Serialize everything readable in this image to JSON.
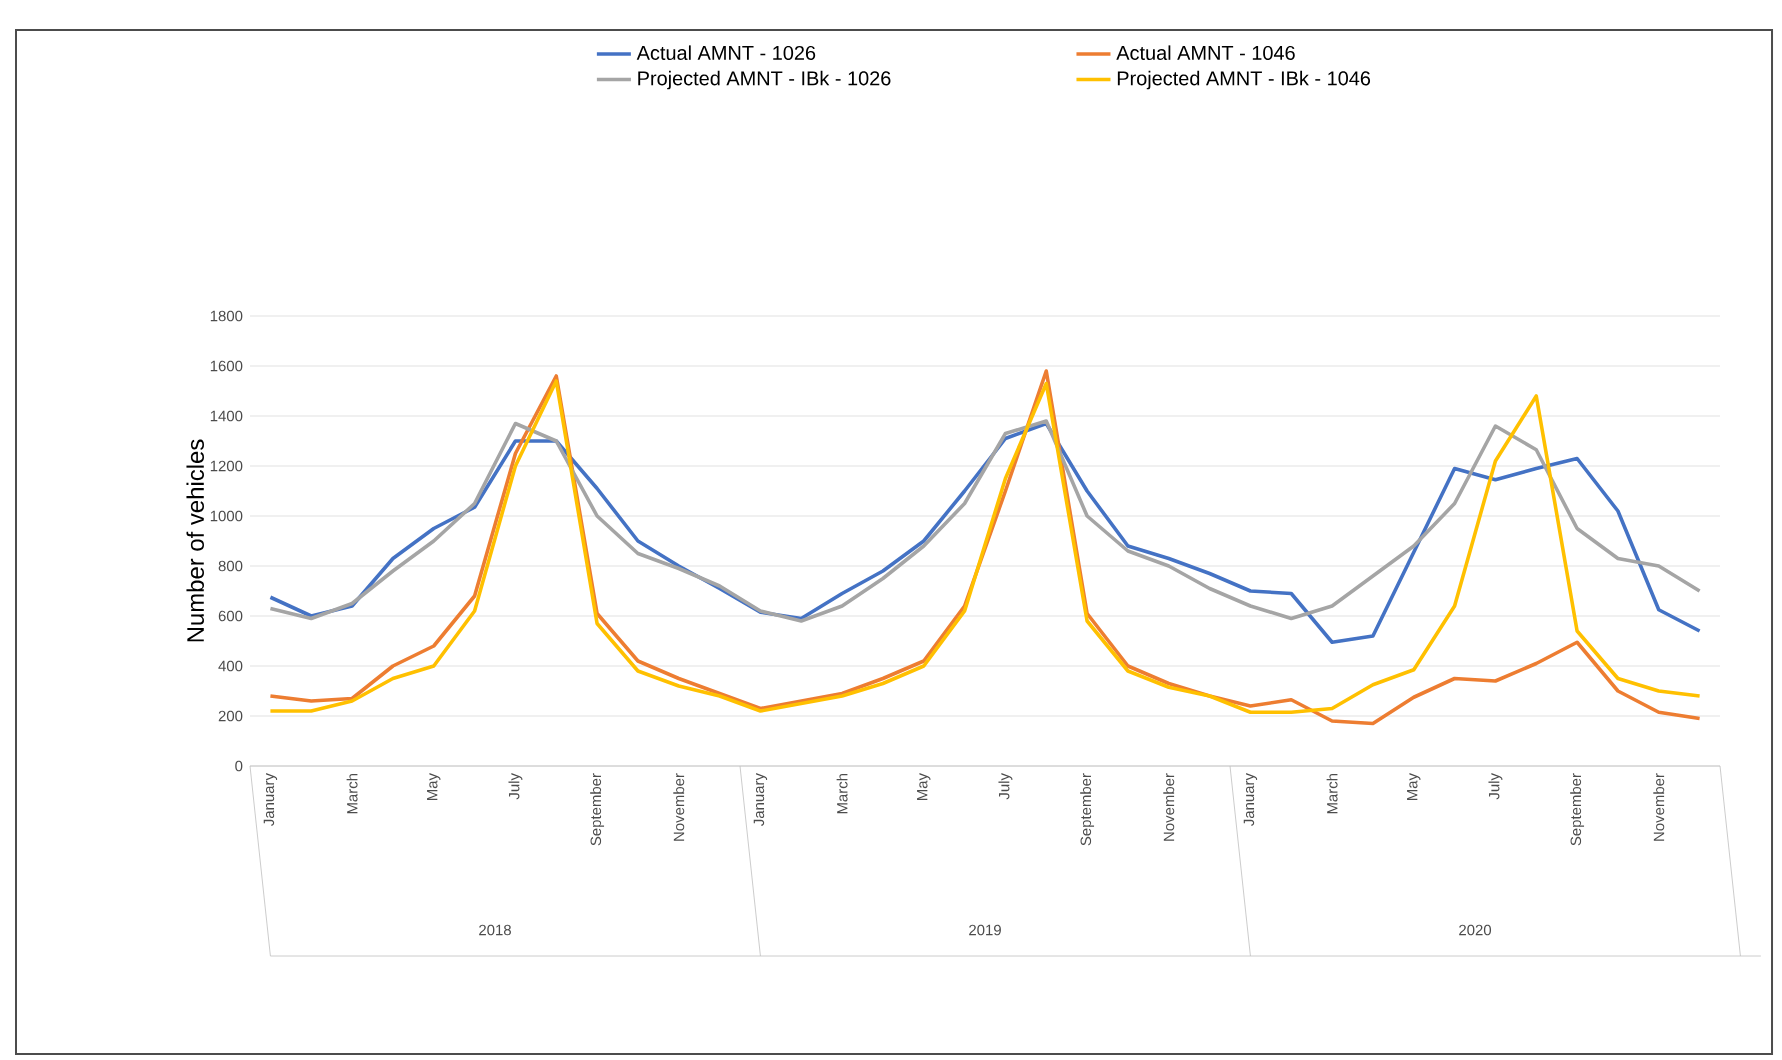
{
  "chart_data": {
    "type": "line",
    "ylabel": "Number of vehicles",
    "categories": [
      "January",
      null,
      "March",
      null,
      "May",
      null,
      "July",
      null,
      "September",
      null,
      "November",
      null,
      "January",
      null,
      "March",
      null,
      "May",
      null,
      "July",
      null,
      "September",
      null,
      "November",
      null,
      "January",
      null,
      "March",
      null,
      "May",
      null,
      "July",
      null,
      "September",
      null,
      "November",
      null
    ],
    "series": [
      {
        "name": "Actual AMNT  - 1026",
        "color": "#4472c4",
        "values": [
          675,
          600,
          640,
          830,
          950,
          1035,
          1300,
          1300,
          1110,
          900,
          800,
          710,
          615,
          590,
          690,
          780,
          900,
          1100,
          1310,
          1370,
          1100,
          880,
          830,
          770,
          700,
          690,
          495,
          520,
          855,
          1190,
          1145,
          1190,
          1230,
          1020,
          625,
          540
        ]
      },
      {
        "name": "Actual AMNT  - 1046",
        "color": "#ed7d31",
        "values": [
          280,
          260,
          270,
          400,
          480,
          680,
          1250,
          1560,
          610,
          420,
          350,
          290,
          230,
          260,
          290,
          350,
          420,
          640,
          1100,
          1580,
          610,
          400,
          330,
          280,
          240,
          265,
          180,
          170,
          275,
          350,
          340,
          410,
          495,
          300,
          215,
          190
        ]
      },
      {
        "name": "Projected AMNT - IBk  - 1026",
        "color": "#a5a5a5",
        "values": [
          630,
          590,
          650,
          780,
          900,
          1050,
          1370,
          1300,
          1000,
          850,
          790,
          720,
          620,
          580,
          640,
          750,
          880,
          1050,
          1330,
          1380,
          1000,
          860,
          800,
          710,
          640,
          590,
          640,
          760,
          880,
          1050,
          1360,
          1265,
          950,
          830,
          800,
          700
        ]
      },
      {
        "name": "Projected AMNT - IBk  - 1046",
        "color": "#ffc000",
        "values": [
          220,
          220,
          260,
          350,
          400,
          620,
          1200,
          1540,
          570,
          380,
          320,
          280,
          220,
          250,
          280,
          330,
          400,
          620,
          1150,
          1530,
          580,
          380,
          315,
          280,
          215,
          215,
          230,
          325,
          385,
          640,
          1220,
          1480,
          540,
          350,
          300,
          280
        ]
      }
    ],
    "ylim": [
      0,
      1800
    ],
    "yticks": [
      0,
      200,
      400,
      600,
      800,
      1000,
      1200,
      1400,
      1600,
      1800
    ],
    "grid": "y",
    "legend": "top",
    "annotations": [
      "2018",
      "2019",
      "2020"
    ]
  }
}
